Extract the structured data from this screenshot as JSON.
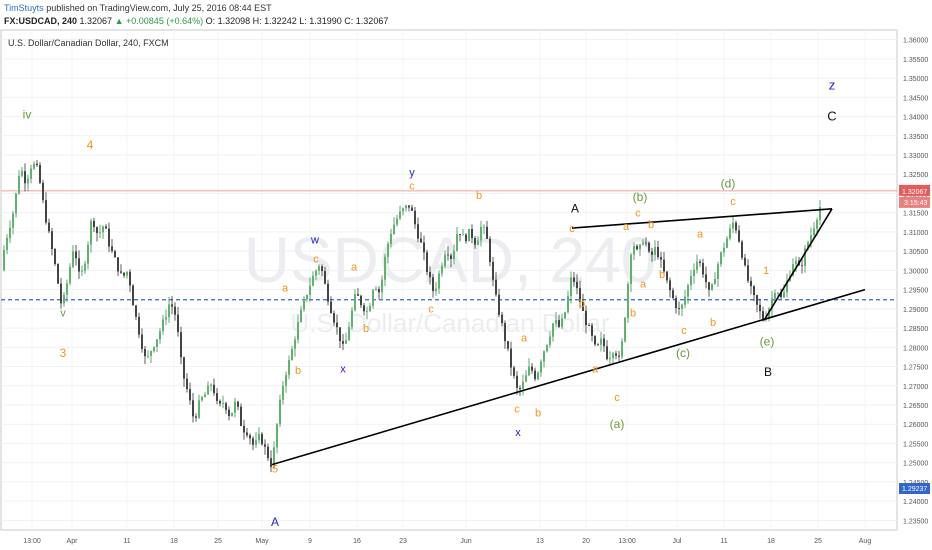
{
  "header": {
    "author": "TimStuyts",
    "published": "published on TradingView.com, July 25, 2016 08:44 EST",
    "symbol": "FX:USDCAD, 240",
    "last": "1.32067",
    "change_arrow": "▲",
    "change": "+0.00845 (+0.64%)",
    "open": "O: 1.32098",
    "high": "H: 1.32242",
    "low": "L: 1.31990",
    "close": "C: 1.32067"
  },
  "chart_data": {
    "type": "candlestick",
    "title": "U.S. Dollar/Canadian Dollar, 240, FXCM",
    "watermark_symbol": "USDCAD, 240",
    "watermark_name": "U.S. Dollar/Canadian Dollar",
    "y_ticks": [
      "1.36000",
      "1.35500",
      "1.35000",
      "1.34500",
      "1.34000",
      "1.33500",
      "1.33000",
      "1.32500",
      "1.32000",
      "1.31500",
      "1.31000",
      "1.30500",
      "1.30000",
      "1.29500",
      "1.29000",
      "1.28500",
      "1.28000",
      "1.27500",
      "1.27000",
      "1.26500",
      "1.26000",
      "1.25500",
      "1.25000",
      "1.24500",
      "1.24000",
      "1.23500"
    ],
    "y_tick_values": [
      1.36,
      1.355,
      1.35,
      1.345,
      1.34,
      1.335,
      1.33,
      1.325,
      1.32,
      1.315,
      1.31,
      1.305,
      1.3,
      1.295,
      1.29,
      1.285,
      1.28,
      1.275,
      1.27,
      1.265,
      1.26,
      1.255,
      1.25,
      1.245,
      1.24,
      1.235
    ],
    "ylim": [
      1.2325,
      1.3625
    ],
    "x_ticks": [
      "13:00",
      "Apr",
      "11",
      "18",
      "25",
      "May",
      "9",
      "16",
      "23",
      "Jun",
      "13",
      "20",
      "13:00",
      "Jul",
      "11",
      "18",
      "25",
      "Aug"
    ],
    "price_label": "1.32067",
    "price_value": 1.32067,
    "countdown_label": "3:15:43",
    "hline_label": "1.29237",
    "hline_value": 1.29237,
    "path": [
      [
        0,
        1.3
      ],
      [
        6,
        1.308
      ],
      [
        14,
        1.316
      ],
      [
        20,
        1.327
      ],
      [
        26,
        1.323
      ],
      [
        32,
        1.328
      ],
      [
        38,
        1.326
      ],
      [
        44,
        1.316
      ],
      [
        50,
        1.308
      ],
      [
        56,
        1.3
      ],
      [
        62,
        1.29
      ],
      [
        68,
        1.298
      ],
      [
        74,
        1.307
      ],
      [
        80,
        1.297
      ],
      [
        86,
        1.304
      ],
      [
        92,
        1.314
      ],
      [
        98,
        1.309
      ],
      [
        104,
        1.312
      ],
      [
        110,
        1.306
      ],
      [
        116,
        1.302
      ],
      [
        122,
        1.298
      ],
      [
        128,
        1.3
      ],
      [
        134,
        1.29
      ],
      [
        140,
        1.283
      ],
      [
        146,
        1.276
      ],
      [
        152,
        1.28
      ],
      [
        158,
        1.283
      ],
      [
        164,
        1.287
      ],
      [
        170,
        1.292
      ],
      [
        176,
        1.288
      ],
      [
        182,
        1.274
      ],
      [
        188,
        1.268
      ],
      [
        194,
        1.261
      ],
      [
        200,
        1.266
      ],
      [
        206,
        1.268
      ],
      [
        212,
        1.271
      ],
      [
        218,
        1.264
      ],
      [
        224,
        1.266
      ],
      [
        230,
        1.262
      ],
      [
        236,
        1.266
      ],
      [
        242,
        1.259
      ],
      [
        248,
        1.258
      ],
      [
        254,
        1.254
      ],
      [
        260,
        1.257
      ],
      [
        266,
        1.253
      ],
      [
        272,
        1.249
      ],
      [
        278,
        1.262
      ],
      [
        284,
        1.272
      ],
      [
        290,
        1.277
      ],
      [
        296,
        1.284
      ],
      [
        302,
        1.29
      ],
      [
        308,
        1.295
      ],
      [
        314,
        1.299
      ],
      [
        320,
        1.302
      ],
      [
        326,
        1.295
      ],
      [
        332,
        1.289
      ],
      [
        338,
        1.284
      ],
      [
        344,
        1.279
      ],
      [
        350,
        1.287
      ],
      [
        356,
        1.294
      ],
      [
        362,
        1.291
      ],
      [
        368,
        1.289
      ],
      [
        374,
        1.297
      ],
      [
        380,
        1.294
      ],
      [
        386,
        1.305
      ],
      [
        392,
        1.311
      ],
      [
        398,
        1.314
      ],
      [
        404,
        1.316
      ],
      [
        410,
        1.317
      ],
      [
        416,
        1.311
      ],
      [
        422,
        1.306
      ],
      [
        428,
        1.299
      ],
      [
        434,
        1.294
      ],
      [
        440,
        1.3
      ],
      [
        446,
        1.306
      ],
      [
        452,
        1.303
      ],
      [
        458,
        1.311
      ],
      [
        464,
        1.308
      ],
      [
        470,
        1.31
      ],
      [
        476,
        1.307
      ],
      [
        482,
        1.312
      ],
      [
        488,
        1.307
      ],
      [
        494,
        1.295
      ],
      [
        500,
        1.288
      ],
      [
        506,
        1.281
      ],
      [
        512,
        1.274
      ],
      [
        518,
        1.268
      ],
      [
        524,
        1.271
      ],
      [
        530,
        1.275
      ],
      [
        536,
        1.272
      ],
      [
        542,
        1.278
      ],
      [
        548,
        1.282
      ],
      [
        554,
        1.287
      ],
      [
        560,
        1.285
      ],
      [
        566,
        1.29
      ],
      [
        572,
        1.299
      ],
      [
        578,
        1.294
      ],
      [
        584,
        1.288
      ],
      [
        590,
        1.284
      ],
      [
        596,
        1.279
      ],
      [
        602,
        1.282
      ],
      [
        608,
        1.277
      ],
      [
        614,
        1.28
      ],
      [
        620,
        1.276
      ],
      [
        626,
        1.291
      ],
      [
        632,
        1.308
      ],
      [
        638,
        1.304
      ],
      [
        644,
        1.309
      ],
      [
        650,
        1.303
      ],
      [
        656,
        1.306
      ],
      [
        662,
        1.301
      ],
      [
        668,
        1.296
      ],
      [
        674,
        1.292
      ],
      [
        680,
        1.289
      ],
      [
        686,
        1.294
      ],
      [
        692,
        1.3
      ],
      [
        698,
        1.303
      ],
      [
        704,
        1.299
      ],
      [
        710,
        1.293
      ],
      [
        716,
        1.3
      ],
      [
        722,
        1.305
      ],
      [
        728,
        1.309
      ],
      [
        734,
        1.313
      ],
      [
        740,
        1.307
      ],
      [
        746,
        1.299
      ],
      [
        752,
        1.294
      ],
      [
        758,
        1.29
      ],
      [
        764,
        1.287
      ],
      [
        770,
        1.291
      ],
      [
        776,
        1.296
      ],
      [
        782,
        1.292
      ],
      [
        788,
        1.298
      ],
      [
        794,
        1.303
      ],
      [
        800,
        1.3
      ],
      [
        806,
        1.306
      ],
      [
        812,
        1.31
      ],
      [
        818,
        1.315
      ],
      [
        822,
        1.318
      ]
    ],
    "trendlines": [
      {
        "p1": [
          272,
          1.2495
        ],
        "p2": [
          865,
          1.295
        ]
      },
      {
        "p1": [
          572,
          1.311
        ],
        "p2": [
          832,
          1.316
        ]
      },
      {
        "p1": [
          764,
          1.287
        ],
        "p2": [
          832,
          1.316
        ]
      }
    ],
    "annotations": [
      {
        "text": "iv",
        "x": 27,
        "y": 1.3395,
        "color": "#6a9a3a",
        "size": 12
      },
      {
        "text": "v",
        "x": 63,
        "y": 1.288,
        "color": "#6a9a3a",
        "size": 11
      },
      {
        "text": "4",
        "x": 90,
        "y": 1.3315,
        "color": "#f0961a",
        "size": 12
      },
      {
        "text": "3",
        "x": 63,
        "y": 1.2775,
        "color": "#f0961a",
        "size": 12
      },
      {
        "text": "a",
        "x": 285,
        "y": 1.2945,
        "color": "#f0961a",
        "size": 11
      },
      {
        "text": "b",
        "x": 298,
        "y": 1.273,
        "color": "#f0961a",
        "size": 11
      },
      {
        "text": "w",
        "x": 315,
        "y": 1.307,
        "color": "#2222cc",
        "size": 11
      },
      {
        "text": "c",
        "x": 316,
        "y": 1.302,
        "color": "#f0961a",
        "size": 11
      },
      {
        "text": "x",
        "x": 343,
        "y": 1.2735,
        "color": "#2222cc",
        "size": 11
      },
      {
        "text": "a",
        "x": 354,
        "y": 1.3,
        "color": "#f0961a",
        "size": 11
      },
      {
        "text": "b",
        "x": 366,
        "y": 1.284,
        "color": "#f0961a",
        "size": 11
      },
      {
        "text": "c",
        "x": 431,
        "y": 1.289,
        "color": "#f0961a",
        "size": 11
      },
      {
        "text": "y",
        "x": 412,
        "y": 1.3245,
        "color": "#2222cc",
        "size": 11
      },
      {
        "text": "c",
        "x": 412,
        "y": 1.321,
        "color": "#f0961a",
        "size": 11
      },
      {
        "text": "b",
        "x": 479,
        "y": 1.3185,
        "color": "#f0961a",
        "size": 11
      },
      {
        "text": "a",
        "x": 524,
        "y": 1.2815,
        "color": "#f0961a",
        "size": 11
      },
      {
        "text": "c",
        "x": 517,
        "y": 1.263,
        "color": "#f0961a",
        "size": 11
      },
      {
        "text": "b",
        "x": 538,
        "y": 1.262,
        "color": "#f0961a",
        "size": 11
      },
      {
        "text": "x",
        "x": 518,
        "y": 1.257,
        "color": "#2222cc",
        "size": 11
      },
      {
        "text": "A",
        "x": 575,
        "y": 1.315,
        "color": "#111111",
        "size": 12
      },
      {
        "text": "c",
        "x": 572,
        "y": 1.31,
        "color": "#f0961a",
        "size": 11
      },
      {
        "text": "b",
        "x": 582,
        "y": 1.2905,
        "color": "#f0961a",
        "size": 11
      },
      {
        "text": "a",
        "x": 595,
        "y": 1.2735,
        "color": "#f0961a",
        "size": 11
      },
      {
        "text": "c",
        "x": 617,
        "y": 1.266,
        "color": "#f0961a",
        "size": 11
      },
      {
        "text": "(a)",
        "x": 617,
        "y": 1.259,
        "color": "#6a9a3a",
        "size": 12
      },
      {
        "text": "a",
        "x": 626,
        "y": 1.3105,
        "color": "#f0961a",
        "size": 11
      },
      {
        "text": "b",
        "x": 633,
        "y": 1.288,
        "color": "#f0961a",
        "size": 11
      },
      {
        "text": "(b)",
        "x": 640,
        "y": 1.318,
        "color": "#6a9a3a",
        "size": 12
      },
      {
        "text": "c",
        "x": 638,
        "y": 1.314,
        "color": "#f0961a",
        "size": 11
      },
      {
        "text": "b",
        "x": 651,
        "y": 1.311,
        "color": "#f0961a",
        "size": 11
      },
      {
        "text": "a",
        "x": 643,
        "y": 1.2955,
        "color": "#f0961a",
        "size": 11
      },
      {
        "text": "b",
        "x": 662,
        "y": 1.298,
        "color": "#f0961a",
        "size": 11
      },
      {
        "text": "c",
        "x": 684,
        "y": 1.2835,
        "color": "#f0961a",
        "size": 11
      },
      {
        "text": "(c)",
        "x": 683,
        "y": 1.2775,
        "color": "#6a9a3a",
        "size": 12
      },
      {
        "text": "a",
        "x": 700,
        "y": 1.3085,
        "color": "#f0961a",
        "size": 11
      },
      {
        "text": "b",
        "x": 713,
        "y": 1.2855,
        "color": "#f0961a",
        "size": 11
      },
      {
        "text": "(d)",
        "x": 728,
        "y": 1.3215,
        "color": "#6a9a3a",
        "size": 12
      },
      {
        "text": "c",
        "x": 733,
        "y": 1.317,
        "color": "#f0961a",
        "size": 11
      },
      {
        "text": "1",
        "x": 766,
        "y": 1.299,
        "color": "#f0961a",
        "size": 11
      },
      {
        "text": "(e)",
        "x": 767,
        "y": 1.2805,
        "color": "#6a9a3a",
        "size": 12
      },
      {
        "text": "B",
        "x": 768,
        "y": 1.2725,
        "color": "#111111",
        "size": 12
      },
      {
        "text": "z",
        "x": 832,
        "y": 1.347,
        "color": "#2222cc",
        "size": 13
      },
      {
        "text": "C",
        "x": 832,
        "y": 1.339,
        "color": "#111111",
        "size": 13
      },
      {
        "text": "5",
        "x": 275,
        "y": 1.2475,
        "color": "#f0961a",
        "size": 11
      },
      {
        "text": "A",
        "x": 275,
        "y": 1.2335,
        "color": "#2222cc",
        "size": 12
      }
    ]
  }
}
